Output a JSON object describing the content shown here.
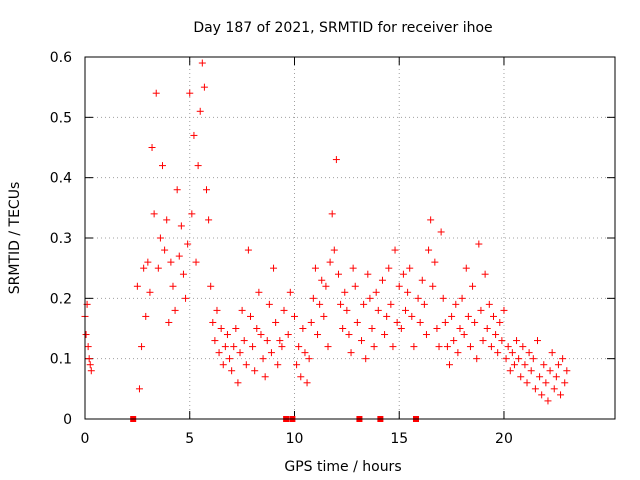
{
  "chart_data": {
    "type": "scatter",
    "title": "Day 187 of 2021, SRMTID for receiver ihoe",
    "xlabel": "GPS time / hours",
    "ylabel": "SRMTID / TECUs",
    "xlim": [
      0,
      25.3
    ],
    "ylim": [
      0,
      0.6
    ],
    "xticks": [
      0,
      5,
      10,
      15,
      20
    ],
    "yticks": [
      0,
      0.1,
      0.2,
      0.3,
      0.4,
      0.5,
      0.6
    ],
    "ytick_labels": [
      "0",
      "0.1",
      "0.2",
      "0.3",
      "0.4",
      "0.5",
      "0.6"
    ],
    "grid": true,
    "marker": "+",
    "color": "#ff0000",
    "gap_markers_x": [
      2.3,
      9.6,
      9.9,
      13.1,
      14.1,
      15.8
    ],
    "series": [
      {
        "name": "SRMTID",
        "x": [
          0.0,
          0.05,
          0.1,
          0.15,
          0.2,
          0.25,
          0.3,
          2.5,
          2.6,
          2.7,
          2.8,
          2.9,
          3.0,
          3.1,
          3.2,
          3.3,
          3.4,
          3.5,
          3.6,
          3.7,
          3.8,
          3.9,
          4.0,
          4.1,
          4.2,
          4.3,
          4.4,
          4.5,
          4.6,
          4.7,
          4.8,
          4.9,
          5.0,
          5.1,
          5.2,
          5.3,
          5.4,
          5.5,
          5.6,
          5.7,
          5.8,
          5.9,
          6.0,
          6.1,
          6.2,
          6.3,
          6.4,
          6.5,
          6.6,
          6.7,
          6.8,
          6.9,
          7.0,
          7.1,
          7.2,
          7.3,
          7.4,
          7.5,
          7.6,
          7.7,
          7.8,
          7.9,
          8.0,
          8.1,
          8.2,
          8.3,
          8.4,
          8.5,
          8.6,
          8.7,
          8.8,
          8.9,
          9.0,
          9.1,
          9.2,
          9.3,
          9.4,
          9.5,
          9.7,
          9.8,
          10.0,
          10.1,
          10.2,
          10.3,
          10.4,
          10.5,
          10.6,
          10.7,
          10.8,
          10.9,
          11.0,
          11.1,
          11.2,
          11.3,
          11.4,
          11.5,
          11.6,
          11.7,
          11.8,
          11.9,
          12.0,
          12.1,
          12.2,
          12.3,
          12.4,
          12.5,
          12.6,
          12.7,
          12.8,
          12.9,
          13.0,
          13.2,
          13.3,
          13.4,
          13.5,
          13.6,
          13.7,
          13.8,
          13.9,
          14.0,
          14.2,
          14.3,
          14.4,
          14.5,
          14.6,
          14.7,
          14.8,
          14.9,
          15.0,
          15.1,
          15.2,
          15.3,
          15.4,
          15.5,
          15.6,
          15.7,
          15.9,
          16.0,
          16.1,
          16.2,
          16.3,
          16.4,
          16.5,
          16.6,
          16.7,
          16.8,
          16.9,
          17.0,
          17.1,
          17.2,
          17.3,
          17.4,
          17.5,
          17.6,
          17.7,
          17.8,
          17.9,
          18.0,
          18.1,
          18.2,
          18.3,
          18.4,
          18.5,
          18.6,
          18.7,
          18.8,
          18.9,
          19.0,
          19.1,
          19.2,
          19.3,
          19.4,
          19.5,
          19.6,
          19.7,
          19.8,
          19.9,
          20.0,
          20.1,
          20.2,
          20.3,
          20.4,
          20.5,
          20.6,
          20.7,
          20.8,
          20.9,
          21.0,
          21.1,
          21.2,
          21.3,
          21.4,
          21.5,
          21.6,
          21.7,
          21.8,
          21.9,
          22.0,
          22.1,
          22.2,
          22.3,
          22.4,
          22.5,
          22.6,
          22.7,
          22.8,
          22.9,
          23.0
        ],
        "y": [
          0.17,
          0.14,
          0.19,
          0.12,
          0.1,
          0.09,
          0.08,
          0.22,
          0.05,
          0.12,
          0.25,
          0.17,
          0.26,
          0.21,
          0.45,
          0.34,
          0.54,
          0.25,
          0.3,
          0.42,
          0.28,
          0.33,
          0.16,
          0.26,
          0.22,
          0.18,
          0.38,
          0.27,
          0.32,
          0.24,
          0.2,
          0.29,
          0.54,
          0.34,
          0.47,
          0.26,
          0.42,
          0.51,
          0.59,
          0.55,
          0.38,
          0.33,
          0.22,
          0.16,
          0.13,
          0.18,
          0.11,
          0.15,
          0.09,
          0.12,
          0.14,
          0.1,
          0.08,
          0.12,
          0.15,
          0.06,
          0.11,
          0.18,
          0.13,
          0.09,
          0.28,
          0.17,
          0.12,
          0.08,
          0.15,
          0.21,
          0.14,
          0.1,
          0.07,
          0.13,
          0.19,
          0.11,
          0.25,
          0.16,
          0.09,
          0.13,
          0.12,
          0.18,
          0.14,
          0.21,
          0.17,
          0.09,
          0.12,
          0.07,
          0.15,
          0.11,
          0.06,
          0.1,
          0.16,
          0.2,
          0.25,
          0.14,
          0.19,
          0.23,
          0.17,
          0.22,
          0.12,
          0.26,
          0.34,
          0.28,
          0.43,
          0.24,
          0.19,
          0.15,
          0.21,
          0.18,
          0.14,
          0.11,
          0.25,
          0.22,
          0.16,
          0.13,
          0.19,
          0.1,
          0.24,
          0.2,
          0.15,
          0.12,
          0.21,
          0.18,
          0.23,
          0.14,
          0.17,
          0.25,
          0.19,
          0.12,
          0.28,
          0.16,
          0.22,
          0.15,
          0.24,
          0.18,
          0.21,
          0.25,
          0.17,
          0.12,
          0.2,
          0.16,
          0.23,
          0.19,
          0.14,
          0.28,
          0.33,
          0.22,
          0.26,
          0.15,
          0.12,
          0.31,
          0.2,
          0.16,
          0.12,
          0.09,
          0.17,
          0.13,
          0.19,
          0.11,
          0.15,
          0.2,
          0.14,
          0.25,
          0.17,
          0.12,
          0.22,
          0.16,
          0.1,
          0.29,
          0.18,
          0.13,
          0.24,
          0.15,
          0.19,
          0.12,
          0.17,
          0.14,
          0.11,
          0.16,
          0.13,
          0.18,
          0.1,
          0.12,
          0.08,
          0.11,
          0.09,
          0.13,
          0.1,
          0.07,
          0.12,
          0.09,
          0.06,
          0.11,
          0.08,
          0.1,
          0.05,
          0.13,
          0.07,
          0.04,
          0.09,
          0.06,
          0.03,
          0.08,
          0.11,
          0.05,
          0.07,
          0.09,
          0.04,
          0.1,
          0.06,
          0.08
        ]
      }
    ]
  }
}
